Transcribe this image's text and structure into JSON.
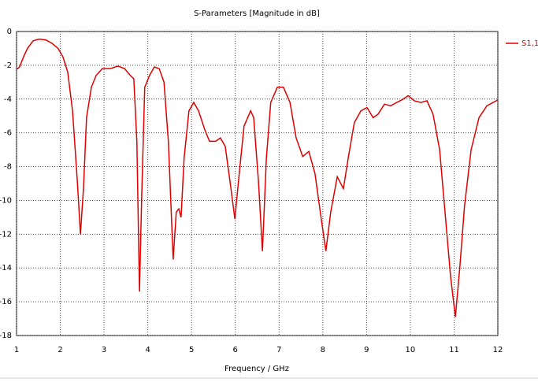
{
  "chart_data": {
    "type": "line",
    "title": "S-Parameters [Magnitude in dB]",
    "x_label": "Frequency / GHz",
    "x": [
      1.0,
      1.07,
      1.16,
      1.25,
      1.38,
      1.52,
      1.67,
      1.81,
      1.95,
      2.06,
      2.17,
      2.28,
      2.39,
      2.46,
      2.53,
      2.6,
      2.71,
      2.82,
      2.96,
      3.14,
      3.32,
      3.47,
      3.6,
      3.68,
      3.75,
      3.81,
      3.86,
      3.93,
      4.04,
      4.15,
      4.26,
      4.37,
      4.47,
      4.58,
      4.65,
      4.71,
      4.76,
      4.83,
      4.94,
      5.05,
      5.16,
      5.3,
      5.41,
      5.55,
      5.66,
      5.77,
      5.88,
      5.99,
      6.09,
      6.2,
      6.35,
      6.42,
      6.53,
      6.62,
      6.71,
      6.81,
      6.96,
      7.1,
      7.25,
      7.39,
      7.54,
      7.68,
      7.82,
      7.97,
      8.07,
      8.18,
      8.33,
      8.47,
      8.58,
      8.72,
      8.87,
      9.01,
      9.15,
      9.26,
      9.41,
      9.55,
      9.69,
      9.84,
      9.95,
      10.09,
      10.24,
      10.38,
      10.52,
      10.67,
      10.81,
      10.92,
      11.03,
      11.13,
      11.24,
      11.39,
      11.57,
      11.75,
      12.0
    ],
    "series": [
      {
        "name": "S1,1",
        "color": "#e00000",
        "values": [
          -2.24,
          -2.1,
          -1.5,
          -1.0,
          -0.55,
          -0.45,
          -0.5,
          -0.7,
          -1.0,
          -1.5,
          -2.4,
          -4.7,
          -8.9,
          -12.0,
          -9.3,
          -5.1,
          -3.3,
          -2.6,
          -2.2,
          -2.2,
          -2.05,
          -2.2,
          -2.6,
          -2.8,
          -6.5,
          -15.4,
          -9.8,
          -3.3,
          -2.6,
          -2.1,
          -2.2,
          -3.0,
          -6.5,
          -13.5,
          -10.7,
          -10.5,
          -11.0,
          -7.5,
          -4.7,
          -4.2,
          -4.7,
          -5.8,
          -6.5,
          -6.5,
          -6.3,
          -6.8,
          -8.9,
          -11.1,
          -8.4,
          -5.6,
          -4.7,
          -5.1,
          -8.9,
          -13.0,
          -7.5,
          -4.2,
          -3.3,
          -3.3,
          -4.2,
          -6.3,
          -7.4,
          -7.1,
          -8.4,
          -11.2,
          -13.0,
          -10.7,
          -8.6,
          -9.3,
          -7.5,
          -5.4,
          -4.7,
          -4.5,
          -5.1,
          -4.9,
          -4.3,
          -4.4,
          -4.2,
          -4.0,
          -3.8,
          -4.1,
          -4.2,
          -4.1,
          -4.9,
          -7.0,
          -11.2,
          -14.5,
          -16.9,
          -14.0,
          -10.3,
          -7.0,
          -5.1,
          -4.4,
          -4.05
        ]
      }
    ],
    "xlim": [
      1,
      12
    ],
    "xticks": [
      1,
      2,
      3,
      4,
      5,
      6,
      7,
      8,
      9,
      10,
      11,
      12
    ],
    "ylim": [
      -18,
      0
    ],
    "yticks": [
      0,
      -2,
      -4,
      -6,
      -8,
      -10,
      -12,
      -14,
      -16,
      -18
    ],
    "grid": true
  }
}
